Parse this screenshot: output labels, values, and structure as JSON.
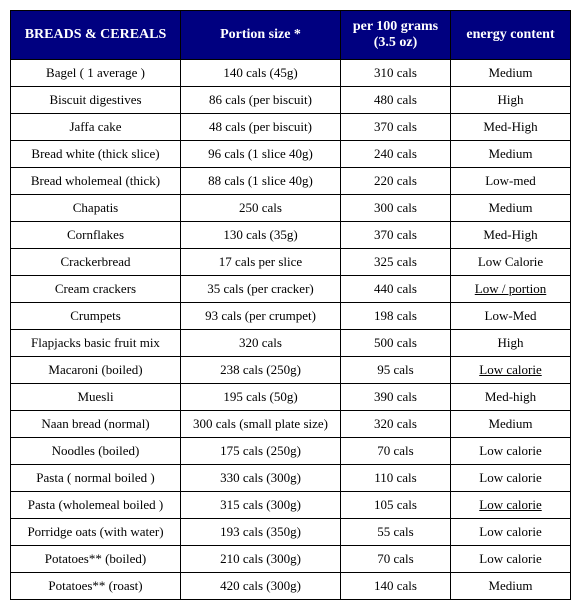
{
  "table": {
    "header_bg": "#000080",
    "header_color": "#ffffff",
    "border_color": "#000000",
    "font_family": "Times New Roman",
    "columns": [
      "BREADS & CEREALS",
      "Portion size *",
      "per 100 grams (3.5 oz)",
      "energy content"
    ],
    "rows": [
      {
        "c0": "Bagel ( 1 average )",
        "c1": "140 cals (45g)",
        "c2": "310 cals",
        "c3": "Medium",
        "u": false
      },
      {
        "c0": "Biscuit digestives",
        "c1": "86 cals (per biscuit)",
        "c2": "480 cals",
        "c3": "High",
        "u": false
      },
      {
        "c0": "Jaffa cake",
        "c1": "48 cals (per biscuit)",
        "c2": "370 cals",
        "c3": "Med-High",
        "u": false
      },
      {
        "c0": "Bread white (thick slice)",
        "c1": "96  cals (1 slice 40g)",
        "c2": "240 cals",
        "c3": "Medium",
        "u": false
      },
      {
        "c0": "Bread wholemeal (thick)",
        "c1": "88  cals (1 slice 40g)",
        "c2": "220 cals",
        "c3": "Low-med",
        "u": false
      },
      {
        "c0": "Chapatis",
        "c1": "250 cals",
        "c2": "300 cals",
        "c3": "Medium",
        "u": false
      },
      {
        "c0": "Cornflakes",
        "c1": "130  cals (35g)",
        "c2": "370 cals",
        "c3": "Med-High",
        "u": false
      },
      {
        "c0": "Crackerbread",
        "c1": "17 cals per slice",
        "c2": "325 cals",
        "c3": "Low Calorie",
        "u": false
      },
      {
        "c0": "Cream crackers",
        "c1": "35 cals (per cracker)",
        "c2": "440 cals",
        "c3": "Low / portion",
        "u": true
      },
      {
        "c0": "Crumpets",
        "c1": "93 cals (per crumpet)",
        "c2": "198 cals",
        "c3": "Low-Med",
        "u": false
      },
      {
        "c0": "Flapjacks basic fruit mix",
        "c1": "320 cals",
        "c2": "500 cals",
        "c3": "High",
        "u": false
      },
      {
        "c0": "Macaroni (boiled)",
        "c1": "238 cals (250g)",
        "c2": "95 cals",
        "c3": "Low calorie",
        "u": true
      },
      {
        "c0": "Muesli",
        "c1": "195  cals (50g)",
        "c2": "390 cals",
        "c3": "Med-high",
        "u": false
      },
      {
        "c0": "Naan bread (normal)",
        "c1": "300 cals (small plate size)",
        "c2": "320 cals",
        "c3": "Medium",
        "u": false
      },
      {
        "c0": "Noodles (boiled)",
        "c1": "175 cals (250g)",
        "c2": "70 cals",
        "c3": "Low calorie",
        "u": false
      },
      {
        "c0": "Pasta ( normal boiled )",
        "c1": "330 cals (300g)",
        "c2": "110 cals",
        "c3": "Low calorie",
        "u": false
      },
      {
        "c0": "Pasta (wholemeal boiled )",
        "c1": "315 cals (300g)",
        "c2": "105 cals",
        "c3": "Low calorie",
        "u": true
      },
      {
        "c0": "Porridge oats (with water)",
        "c1": "193 cals (350g)",
        "c2": "55 cals",
        "c3": "Low calorie",
        "u": false
      },
      {
        "c0": "Potatoes** (boiled)",
        "c1": "210 cals (300g)",
        "c2": "70 cals",
        "c3": "Low calorie",
        "u": false
      },
      {
        "c0": "Potatoes** (roast)",
        "c1": "420 cals (300g)",
        "c2": "140 cals",
        "c3": "Medium",
        "u": false
      }
    ]
  }
}
